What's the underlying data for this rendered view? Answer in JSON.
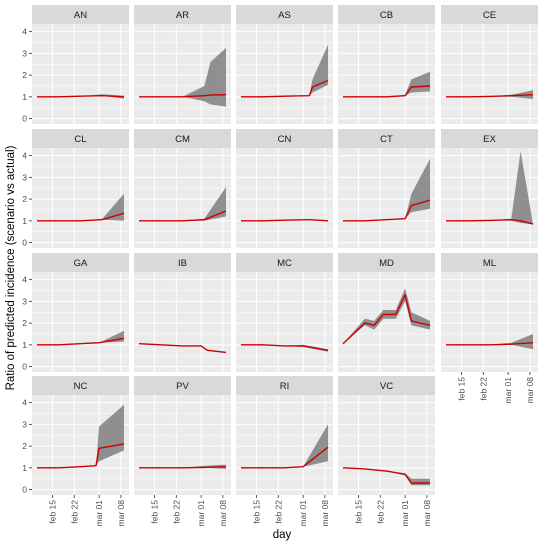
{
  "chart_data": {
    "type": "line",
    "xlabel": "day",
    "ylabel": "Ratio of predicted incidence (scenario vs actual)",
    "x_ticks": [
      "feb 15",
      "feb 22",
      "mar 01",
      "mar 08"
    ],
    "x_range": [
      "2020-02-10",
      "2020-03-09"
    ],
    "y_ticks": [
      0,
      1,
      2,
      3,
      4
    ],
    "ylim": [
      -0.25,
      4.35
    ],
    "grid": true,
    "colors": {
      "line": "#cc0000",
      "ribbon": "#7f7f7f",
      "panel_bg": "#ebebeb",
      "strip_bg": "#d9d9d9",
      "grid": "#ffffff"
    },
    "panels": [
      {
        "name": "AN",
        "x": [
          "2020-02-10",
          "2020-02-17",
          "2020-02-24",
          "2020-03-02",
          "2020-03-09"
        ],
        "y": [
          1.0,
          1.0,
          1.03,
          1.05,
          1.0
        ],
        "lower": [
          1.0,
          1.0,
          1.03,
          1.05,
          0.92
        ],
        "upper": [
          1.0,
          1.0,
          1.03,
          1.12,
          1.05
        ]
      },
      {
        "name": "AR",
        "x": [
          "2020-02-10",
          "2020-02-17",
          "2020-02-24",
          "2020-03-02",
          "2020-03-04",
          "2020-03-09"
        ],
        "y": [
          1.0,
          1.0,
          1.0,
          1.05,
          1.08,
          1.1
        ],
        "lower": [
          1.0,
          1.0,
          1.0,
          0.8,
          0.65,
          0.55
        ],
        "upper": [
          1.0,
          1.0,
          1.0,
          1.5,
          2.6,
          3.25
        ]
      },
      {
        "name": "AS",
        "x": [
          "2020-02-10",
          "2020-02-17",
          "2020-02-24",
          "2020-03-03",
          "2020-03-04",
          "2020-03-09"
        ],
        "y": [
          1.0,
          1.0,
          1.03,
          1.05,
          1.45,
          1.75
        ],
        "lower": [
          1.0,
          1.0,
          1.03,
          1.05,
          1.2,
          1.55
        ],
        "upper": [
          1.0,
          1.0,
          1.03,
          1.05,
          1.8,
          3.4
        ]
      },
      {
        "name": "CB",
        "x": [
          "2020-02-10",
          "2020-02-17",
          "2020-02-24",
          "2020-03-01",
          "2020-03-03",
          "2020-03-09"
        ],
        "y": [
          1.0,
          1.0,
          1.0,
          1.05,
          1.45,
          1.5
        ],
        "lower": [
          1.0,
          1.0,
          1.0,
          1.05,
          1.2,
          1.25
        ],
        "upper": [
          1.0,
          1.0,
          1.0,
          1.1,
          1.8,
          2.15
        ]
      },
      {
        "name": "CE",
        "x": [
          "2020-02-10",
          "2020-02-17",
          "2020-02-24",
          "2020-03-02",
          "2020-03-09"
        ],
        "y": [
          1.0,
          1.0,
          1.02,
          1.05,
          1.1
        ],
        "lower": [
          1.0,
          1.0,
          1.02,
          1.0,
          0.9
        ],
        "upper": [
          1.0,
          1.0,
          1.02,
          1.1,
          1.3
        ]
      },
      {
        "name": "CL",
        "x": [
          "2020-02-10",
          "2020-02-17",
          "2020-02-24",
          "2020-03-02",
          "2020-03-09"
        ],
        "y": [
          1.0,
          1.0,
          1.0,
          1.05,
          1.35
        ],
        "lower": [
          1.0,
          1.0,
          1.0,
          1.05,
          1.0
        ],
        "upper": [
          1.0,
          1.0,
          1.0,
          1.1,
          2.25
        ]
      },
      {
        "name": "CM",
        "x": [
          "2020-02-10",
          "2020-02-17",
          "2020-02-24",
          "2020-03-02",
          "2020-03-09"
        ],
        "y": [
          1.0,
          1.0,
          1.0,
          1.05,
          1.45
        ],
        "lower": [
          1.0,
          1.0,
          1.0,
          1.0,
          1.2
        ],
        "upper": [
          1.0,
          1.0,
          1.0,
          1.1,
          2.55
        ]
      },
      {
        "name": "CN",
        "x": [
          "2020-02-10",
          "2020-02-17",
          "2020-02-24",
          "2020-03-03",
          "2020-03-09"
        ],
        "y": [
          1.0,
          1.0,
          1.03,
          1.05,
          1.0
        ],
        "lower": [
          1.0,
          1.0,
          1.03,
          1.05,
          1.0
        ],
        "upper": [
          1.0,
          1.0,
          1.03,
          1.05,
          1.0
        ]
      },
      {
        "name": "CT",
        "x": [
          "2020-02-10",
          "2020-02-17",
          "2020-02-24",
          "2020-03-01",
          "2020-03-03",
          "2020-03-09"
        ],
        "y": [
          1.0,
          1.0,
          1.05,
          1.1,
          1.7,
          1.95
        ],
        "lower": [
          1.0,
          1.0,
          1.05,
          1.1,
          1.4,
          1.55
        ],
        "upper": [
          1.0,
          1.0,
          1.05,
          1.1,
          2.25,
          3.85
        ]
      },
      {
        "name": "EX",
        "x": [
          "2020-02-10",
          "2020-02-17",
          "2020-02-24",
          "2020-03-02",
          "2020-03-05",
          "2020-03-09"
        ],
        "y": [
          1.0,
          1.0,
          1.02,
          1.05,
          1.0,
          0.85
        ],
        "lower": [
          1.0,
          1.0,
          1.02,
          1.0,
          0.9,
          0.85
        ],
        "upper": [
          1.0,
          1.0,
          1.02,
          1.1,
          4.2,
          0.85
        ]
      },
      {
        "name": "GA",
        "x": [
          "2020-02-10",
          "2020-02-17",
          "2020-02-24",
          "2020-03-01",
          "2020-03-09"
        ],
        "y": [
          1.0,
          1.0,
          1.05,
          1.1,
          1.3
        ],
        "lower": [
          1.0,
          1.0,
          1.05,
          1.1,
          1.15
        ],
        "upper": [
          1.0,
          1.0,
          1.05,
          1.1,
          1.65
        ]
      },
      {
        "name": "IB",
        "x": [
          "2020-02-10",
          "2020-02-17",
          "2020-02-24",
          "2020-03-01",
          "2020-03-03",
          "2020-03-09"
        ],
        "y": [
          1.05,
          1.0,
          0.95,
          0.95,
          0.75,
          0.65
        ],
        "lower": [
          1.05,
          1.0,
          0.95,
          0.95,
          0.75,
          0.65
        ],
        "upper": [
          1.05,
          1.0,
          0.95,
          0.95,
          0.75,
          0.65
        ]
      },
      {
        "name": "MC",
        "x": [
          "2020-02-10",
          "2020-02-17",
          "2020-02-24",
          "2020-03-01",
          "2020-03-09"
        ],
        "y": [
          1.0,
          1.0,
          0.95,
          0.95,
          0.75
        ],
        "lower": [
          1.0,
          1.0,
          0.95,
          0.9,
          0.68
        ],
        "upper": [
          1.0,
          1.0,
          0.95,
          1.0,
          0.8
        ]
      },
      {
        "name": "MD",
        "x": [
          "2020-02-10",
          "2020-02-17",
          "2020-02-20",
          "2020-02-23",
          "2020-02-27",
          "2020-03-01",
          "2020-03-03",
          "2020-03-09"
        ],
        "y": [
          1.05,
          2.0,
          1.9,
          2.4,
          2.4,
          3.3,
          2.1,
          1.9
        ],
        "lower": [
          1.05,
          1.9,
          1.7,
          2.2,
          2.2,
          3.0,
          1.9,
          1.7
        ],
        "upper": [
          1.05,
          2.2,
          2.1,
          2.6,
          2.6,
          3.6,
          2.5,
          2.1
        ]
      },
      {
        "name": "ML",
        "x": [
          "2020-02-10",
          "2020-02-17",
          "2020-02-24",
          "2020-03-02",
          "2020-03-09"
        ],
        "y": [
          1.0,
          1.0,
          1.0,
          1.03,
          1.1
        ],
        "lower": [
          1.0,
          1.0,
          1.0,
          1.0,
          0.8
        ],
        "upper": [
          1.0,
          1.0,
          1.0,
          1.1,
          1.5
        ]
      },
      {
        "name": "NC",
        "x": [
          "2020-02-10",
          "2020-02-17",
          "2020-02-24",
          "2020-02-29",
          "2020-03-01",
          "2020-03-09"
        ],
        "y": [
          1.0,
          1.0,
          1.05,
          1.1,
          1.9,
          2.1
        ],
        "lower": [
          1.0,
          1.0,
          1.05,
          1.1,
          1.3,
          1.8
        ],
        "upper": [
          1.0,
          1.0,
          1.05,
          1.1,
          2.9,
          3.9
        ]
      },
      {
        "name": "PV",
        "x": [
          "2020-02-10",
          "2020-02-17",
          "2020-02-24",
          "2020-03-02",
          "2020-03-09"
        ],
        "y": [
          1.0,
          1.0,
          1.0,
          1.02,
          1.05
        ],
        "lower": [
          1.0,
          1.0,
          1.0,
          1.0,
          0.95
        ],
        "upper": [
          1.0,
          1.0,
          1.0,
          1.1,
          1.15
        ]
      },
      {
        "name": "RI",
        "x": [
          "2020-02-10",
          "2020-02-17",
          "2020-02-24",
          "2020-03-01",
          "2020-03-09"
        ],
        "y": [
          1.0,
          1.0,
          1.0,
          1.05,
          1.95
        ],
        "lower": [
          1.0,
          1.0,
          1.0,
          1.05,
          1.3
        ],
        "upper": [
          1.0,
          1.0,
          1.0,
          1.05,
          3.0
        ]
      },
      {
        "name": "VC",
        "x": [
          "2020-02-10",
          "2020-02-17",
          "2020-02-24",
          "2020-03-01",
          "2020-03-03",
          "2020-03-09"
        ],
        "y": [
          1.0,
          0.95,
          0.85,
          0.7,
          0.3,
          0.3
        ],
        "lower": [
          1.0,
          0.95,
          0.85,
          0.65,
          0.2,
          0.2
        ],
        "upper": [
          1.0,
          0.95,
          0.85,
          0.75,
          0.5,
          0.5
        ]
      }
    ]
  }
}
